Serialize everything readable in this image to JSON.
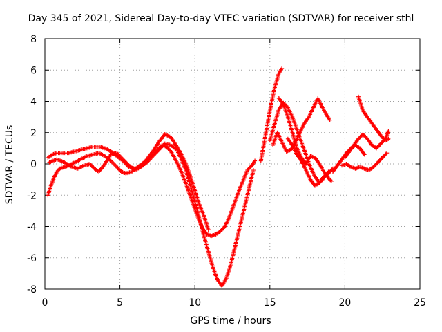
{
  "chart_data": {
    "type": "scatter",
    "title": "Day 345 of 2021, Sidereal Day-to-day VTEC variation (SDTVAR) for receiver sthl",
    "xlabel": "GPS time / hours",
    "ylabel": "SDTVAR / TECUs",
    "xlim": [
      0,
      25
    ],
    "ylim": [
      -8,
      8
    ],
    "xticks": [
      0,
      5,
      10,
      15,
      20,
      25
    ],
    "yticks": [
      -8,
      -6,
      -4,
      -2,
      0,
      2,
      4,
      6,
      8
    ],
    "grid": true,
    "marker": "+",
    "color": "#ff0000",
    "series": [
      {
        "x": [
          0.2,
          0.4,
          0.6,
          0.8,
          1.0,
          1.3,
          1.6,
          2.0,
          2.4,
          2.8,
          3.2,
          3.6,
          4.0,
          4.4,
          4.8,
          5.1,
          5.4,
          5.8,
          6.2,
          6.6,
          7.0,
          7.4,
          7.8,
          8.1,
          8.4,
          8.7,
          9.0,
          9.3,
          9.6,
          9.9,
          10.2,
          10.5,
          10.8,
          11.1,
          11.4,
          11.7,
          12.0,
          12.3,
          12.6,
          12.9,
          13.2,
          13.5,
          13.8,
          14.0
        ],
        "y": [
          -2.0,
          -1.4,
          -0.9,
          -0.5,
          -0.3,
          -0.2,
          -0.1,
          0.1,
          0.3,
          0.5,
          0.6,
          0.7,
          0.5,
          0.2,
          -0.2,
          -0.5,
          -0.6,
          -0.5,
          -0.2,
          0.1,
          0.4,
          0.8,
          1.2,
          1.1,
          0.8,
          0.3,
          -0.3,
          -1.0,
          -1.8,
          -2.6,
          -3.4,
          -4.1,
          -4.5,
          -4.6,
          -4.5,
          -4.3,
          -4.0,
          -3.4,
          -2.6,
          -1.8,
          -1.1,
          -0.4,
          -0.1,
          0.2
        ]
      },
      {
        "x": [
          0.2,
          0.5,
          0.8,
          1.2,
          1.6,
          2.0,
          2.4,
          2.8,
          3.2,
          3.6,
          4.0,
          4.4,
          4.8,
          5.2,
          5.6,
          6.0,
          6.4,
          6.8,
          7.2,
          7.6,
          8.0,
          8.4,
          8.8,
          9.1,
          9.4,
          9.7,
          10.0,
          10.3,
          10.6,
          10.9,
          11.2,
          11.5,
          11.8,
          12.1,
          12.4,
          12.7,
          13.0,
          13.3,
          13.6,
          13.9
        ],
        "y": [
          0.4,
          0.6,
          0.7,
          0.7,
          0.7,
          0.8,
          0.9,
          1.0,
          1.1,
          1.1,
          1.0,
          0.8,
          0.5,
          0.2,
          -0.2,
          -0.3,
          -0.2,
          0.1,
          0.5,
          0.9,
          1.3,
          1.2,
          0.9,
          0.3,
          -0.4,
          -1.4,
          -2.4,
          -3.5,
          -4.6,
          -5.6,
          -6.6,
          -7.4,
          -7.8,
          -7.3,
          -6.4,
          -5.2,
          -4.0,
          -2.8,
          -1.6,
          -0.4
        ]
      },
      {
        "x": [
          0.3,
          0.8,
          1.3,
          1.8,
          2.2,
          2.6,
          3.0,
          3.3,
          3.6,
          4.0,
          4.4,
          4.8,
          5.2,
          5.6,
          6.0,
          6.4,
          6.8,
          7.2,
          7.6,
          8.0,
          8.4,
          8.8,
          9.1,
          9.4,
          9.7,
          10.0,
          10.3,
          10.6,
          10.9
        ],
        "y": [
          0.1,
          0.3,
          0.1,
          -0.2,
          -0.3,
          -0.1,
          0.0,
          -0.3,
          -0.5,
          0.0,
          0.6,
          0.7,
          0.3,
          -0.1,
          -0.4,
          -0.2,
          0.3,
          0.8,
          1.4,
          1.9,
          1.7,
          1.1,
          0.6,
          0.0,
          -0.8,
          -1.7,
          -2.6,
          -3.3,
          -4.2
        ]
      },
      {
        "x": [
          15.0,
          15.3,
          15.6,
          15.9,
          16.2,
          16.5,
          16.8,
          17.1,
          17.4,
          17.7,
          18.0,
          18.3,
          18.6,
          18.9
        ],
        "y": [
          1.5,
          2.5,
          3.5,
          3.9,
          3.6,
          3.0,
          2.2,
          1.4,
          0.6,
          -0.2,
          -0.8,
          -1.2,
          -0.9,
          -0.5
        ]
      },
      {
        "x": [
          14.4,
          14.7,
          15.0,
          15.3,
          15.6,
          15.8
        ],
        "y": [
          0.2,
          1.8,
          3.4,
          4.8,
          5.8,
          6.1
        ]
      },
      {
        "x": [
          15.2,
          15.5,
          15.8,
          16.1,
          16.4,
          16.7,
          17.0,
          17.3,
          17.6,
          17.9,
          18.2,
          18.5,
          18.8,
          19.0
        ],
        "y": [
          1.2,
          2.0,
          1.4,
          0.8,
          0.9,
          1.4,
          2.0,
          2.6,
          3.0,
          3.6,
          4.2,
          3.6,
          3.1,
          2.8
        ]
      },
      {
        "x": [
          15.6,
          15.9,
          16.2,
          16.5,
          16.8,
          17.1,
          17.4,
          17.7,
          18.0,
          18.3,
          18.6,
          18.9,
          19.1
        ],
        "y": [
          4.2,
          3.8,
          3.0,
          2.0,
          1.0,
          0.4,
          0.0,
          0.5,
          0.4,
          0.0,
          -0.5,
          -0.9,
          -1.1
        ]
      },
      {
        "x": [
          16.2,
          16.5,
          16.8,
          17.1,
          17.4,
          17.7,
          18.0,
          18.3,
          18.6,
          18.9,
          19.2
        ],
        "y": [
          1.6,
          1.2,
          0.6,
          0.2,
          -0.4,
          -1.0,
          -1.4,
          -1.2,
          -0.8,
          -0.6,
          -0.3
        ]
      },
      {
        "x": [
          19.8,
          20.1,
          20.4,
          20.7,
          21.0,
          21.3,
          21.6,
          21.9,
          22.2,
          22.5,
          22.8
        ],
        "y": [
          -0.1,
          0.0,
          -0.2,
          -0.3,
          -0.2,
          -0.3,
          -0.4,
          -0.2,
          0.1,
          0.4,
          0.7
        ]
      },
      {
        "x": [
          20.0,
          20.3,
          20.6,
          20.9,
          21.2,
          21.5,
          21.8,
          22.1,
          22.4,
          22.7,
          22.9
        ],
        "y": [
          0.4,
          0.8,
          1.2,
          1.6,
          1.9,
          1.6,
          1.2,
          1.0,
          1.3,
          1.6,
          2.1
        ]
      },
      {
        "x": [
          20.9,
          21.2,
          21.5,
          21.8,
          22.1,
          22.4,
          22.7,
          22.9
        ],
        "y": [
          4.3,
          3.4,
          3.0,
          2.6,
          2.2,
          1.8,
          1.5,
          1.6
        ]
      },
      {
        "x": [
          19.2,
          19.5,
          19.8,
          20.1,
          20.4,
          20.7,
          21.0,
          21.3
        ],
        "y": [
          -0.5,
          -0.1,
          0.3,
          0.7,
          1.0,
          1.2,
          1.0,
          0.6
        ]
      }
    ]
  }
}
